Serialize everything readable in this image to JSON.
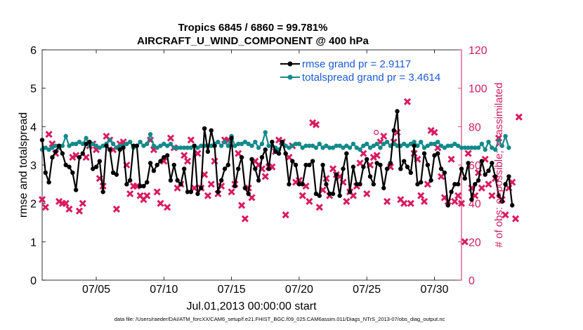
{
  "chart_data": {
    "type": "line",
    "title_line1": "Tropics 6845 / 6860 = 99.781%",
    "title_line2": "AIRCRAFT_U_WIND_COMPONENT @ 400 hPa",
    "xlabel": "Jul.01,2013 00:00:00 start",
    "ylabel_left": "rmse and totalspread",
    "ylabel_right": "# of obs: o=possible; ×=assimilated",
    "footer": "data file: /Users/raeder/DAI/ATM_forcXX/CAM6_setup/f.e21.FHIST_BGC.f09_025.CAM6assim.011/Diags_NTrS_2013-07/obs_diag_output.nc",
    "xlim": [
      1,
      32
    ],
    "ylim_left": [
      0,
      6
    ],
    "ylim_right": [
      0,
      120
    ],
    "x_ticks": [
      5,
      10,
      15,
      20,
      25,
      30
    ],
    "x_tick_labels": [
      "07/05",
      "07/10",
      "07/15",
      "07/20",
      "07/25",
      "07/30"
    ],
    "y_ticks_left": [
      0,
      1,
      2,
      3,
      4,
      5,
      6
    ],
    "y_ticks_right": [
      0,
      20,
      40,
      60,
      80,
      100,
      120
    ],
    "colors": {
      "rmse": "#000000",
      "spread": "#138a8a",
      "obs": "#d81b60",
      "right_axis": "#cc1f5d",
      "legend_text": "#1a5bd6"
    },
    "legend": [
      {
        "label": "rmse grand pr = 2.9117",
        "series": "rmse"
      },
      {
        "label": "totalspread grand pr = 3.4614",
        "series": "spread"
      }
    ],
    "series": [
      {
        "name": "rmse",
        "x_start": 1.0,
        "x_step": 0.25,
        "values": [
          3.65,
          2.8,
          2.55,
          3.2,
          3.35,
          3.5,
          3.3,
          3.0,
          2.95,
          2.8,
          2.35,
          3.2,
          3.3,
          3.55,
          3.6,
          2.9,
          2.95,
          3.1,
          2.3,
          3.5,
          3.4,
          2.8,
          2.75,
          3.4,
          3.45,
          2.5,
          2.6,
          3.5,
          3.5,
          2.45,
          2.45,
          2.55,
          3.05,
          2.85,
          3.0,
          3.1,
          3.2,
          3.25,
          2.6,
          3.0,
          2.6,
          2.5,
          2.9,
          2.3,
          2.3,
          3.5,
          2.25,
          2.4,
          3.95,
          3.35,
          3.9,
          3.5,
          2.3,
          2.6,
          2.9,
          3.0,
          3.7,
          2.45,
          2.9,
          3.2,
          2.4,
          2.25,
          3.15,
          2.9,
          2.6,
          3.2,
          3.4,
          2.9,
          3.6,
          3.35,
          3.3,
          3.6,
          3.3,
          2.5,
          3.1,
          3.0,
          2.5,
          2.5,
          3.0,
          3.0,
          3.1,
          2.25,
          2.2,
          3.0,
          2.5,
          2.25,
          2.25,
          2.75,
          2.2,
          2.9,
          3.3,
          2.3,
          2.95,
          2.5,
          2.5,
          2.95,
          3.15,
          2.7,
          2.5,
          3.05,
          3.0,
          2.4,
          2.9,
          3.05,
          3.9,
          4.4,
          2.9,
          3.1,
          2.95,
          2.8,
          3.5,
          2.5,
          2.55,
          3.3,
          3.0,
          2.6,
          3.25,
          3.3,
          2.9,
          2.8,
          1.95,
          2.3,
          2.5,
          2.5,
          2.9,
          2.65,
          3.05,
          2.1,
          2.5,
          2.6,
          3.1,
          2.75,
          2.85,
          3.05,
          2.7,
          2.2,
          2.05,
          2.5,
          2.7,
          1.95
        ]
      },
      {
        "name": "totalspread",
        "x_start": 1.0,
        "x_step": 0.25,
        "values": [
          3.4,
          3.45,
          3.4,
          3.45,
          3.5,
          3.45,
          3.5,
          3.75,
          3.5,
          3.55,
          3.55,
          3.6,
          3.55,
          3.7,
          3.5,
          3.55,
          3.5,
          3.45,
          3.5,
          3.55,
          3.65,
          3.55,
          3.45,
          3.5,
          3.5,
          3.55,
          3.6,
          3.45,
          3.5,
          3.6,
          3.5,
          3.55,
          3.8,
          3.5,
          3.45,
          3.5,
          3.55,
          3.5,
          3.55,
          3.45,
          3.45,
          3.45,
          3.45,
          3.45,
          3.45,
          3.5,
          3.45,
          3.5,
          3.5,
          3.5,
          3.5,
          3.55,
          3.6,
          3.5,
          3.6,
          3.5,
          3.75,
          3.5,
          3.55,
          3.55,
          3.6,
          3.55,
          3.5,
          3.6,
          3.45,
          3.55,
          3.85,
          3.5,
          3.5,
          3.45,
          3.4,
          3.55,
          3.5,
          3.45,
          3.5,
          3.55,
          3.55,
          3.45,
          3.5,
          3.5,
          3.5,
          3.45,
          3.55,
          3.45,
          3.5,
          3.45,
          3.45,
          3.5,
          3.5,
          3.45,
          3.5,
          3.45,
          3.55,
          3.45,
          3.4,
          3.5,
          3.55,
          3.45,
          3.5,
          3.55,
          3.45,
          3.55,
          3.6,
          3.5,
          3.55,
          3.5,
          3.5,
          3.55,
          3.5,
          3.55,
          3.6,
          3.5,
          3.6,
          3.45,
          3.5,
          3.55,
          3.55,
          3.6,
          3.5,
          3.45,
          3.5,
          3.5,
          3.55,
          3.5,
          3.45,
          3.45,
          3.45,
          3.45,
          3.45,
          3.45,
          3.55,
          3.4,
          3.6,
          3.45,
          3.4,
          3.65,
          3.5,
          3.75,
          3.45
        ]
      },
      {
        "name": "obs_assimilated",
        "axis": "right",
        "x_start": 1.0,
        "x_step": 0.25,
        "values": [
          42,
          38,
          76,
          71,
          66,
          41,
          40,
          40,
          37,
          64,
          65,
          36,
          40,
          64,
          70,
          71,
          68,
          53,
          49,
          75,
          73,
          68,
          37,
          71,
          72,
          60,
          45,
          49,
          49,
          44,
          42,
          44,
          73,
          68,
          46,
          40,
          62,
          38,
          74,
          69,
          48,
          50,
          65,
          62,
          73,
          48,
          66,
          48,
          55,
          44,
          50,
          62,
          45,
          49,
          73,
          73,
          46,
          50,
          66,
          39,
          32,
          48,
          43,
          62,
          60,
          58,
          54,
          59,
          59,
          67,
          73,
          72,
          34,
          64,
          70,
          51,
          52,
          44,
          49,
          41,
          82,
          81,
          38,
          47,
          53,
          44,
          58,
          55,
          54,
          51,
          41,
          46,
          44,
          49,
          61,
          66,
          45,
          60,
          64,
          65,
          72,
          75,
          41,
          59,
          72,
          77,
          42,
          40,
          93,
          40,
          66,
          63,
          44,
          41,
          50,
          78,
          77,
          69,
          54,
          43,
          41,
          63,
          41,
          44,
          40,
          20,
          66,
          48,
          44,
          56,
          48,
          63,
          50,
          44,
          53,
          74,
          42,
          34,
          48,
          51,
          32,
          85
        ]
      }
    ]
  }
}
